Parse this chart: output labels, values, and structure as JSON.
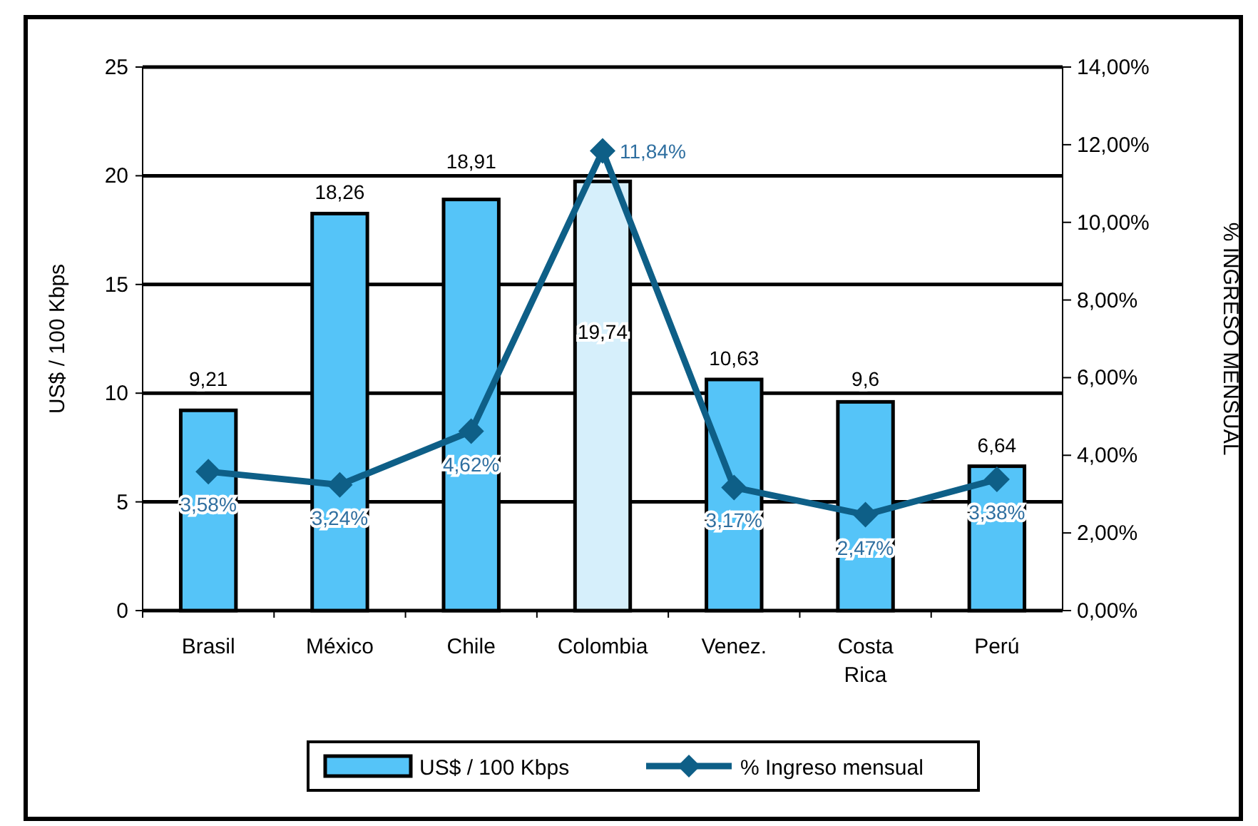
{
  "chart_data": {
    "type": "bar",
    "categories": [
      "Brasil",
      "México",
      "Chile",
      "Colombia",
      "Venez.",
      "Costa Rica",
      "Perú"
    ],
    "ylabel": "US$ / 100 Kbps",
    "y2label": "% INGRESO MENSUAL",
    "ylim": [
      0,
      25
    ],
    "yticks": [
      0,
      5,
      10,
      15,
      20,
      25
    ],
    "y2lim": [
      0,
      14
    ],
    "y2ticks": [
      {
        "value": 0,
        "label": "0,00%"
      },
      {
        "value": 2,
        "label": "2,00%"
      },
      {
        "value": 4,
        "label": "4,00%"
      },
      {
        "value": 6,
        "label": "6,00%"
      },
      {
        "value": 8,
        "label": "8,00%"
      },
      {
        "value": 10,
        "label": "10,00%"
      },
      {
        "value": 12,
        "label": "12,00%"
      },
      {
        "value": 14,
        "label": "14,00%"
      }
    ],
    "grid": "y",
    "legend": "bottom",
    "series": [
      {
        "name": "US$ / 100 Kbps",
        "type": "bar",
        "color": "#55c4f8",
        "colors": [
          "#55c4f8",
          "#55c4f8",
          "#55c4f8",
          "#d6effb",
          "#55c4f8",
          "#55c4f8",
          "#55c4f8"
        ],
        "values": [
          9.21,
          18.26,
          18.91,
          19.74,
          10.63,
          9.6,
          6.64
        ],
        "value_labels": [
          "9,21",
          "18,26",
          "18,91",
          "19,74",
          "10,63",
          "9,6",
          "6,64"
        ]
      },
      {
        "name": "% Ingreso mensual",
        "type": "line",
        "axis": "y2",
        "color": "#0e5f87",
        "marker": "diamond",
        "values": [
          3.58,
          3.24,
          4.62,
          11.84,
          3.17,
          2.47,
          3.38
        ],
        "value_labels": [
          "3,58%",
          "3,24%",
          "4,62%",
          "11,84%",
          "3,17%",
          "2,47%",
          "3,38%"
        ]
      }
    ]
  }
}
